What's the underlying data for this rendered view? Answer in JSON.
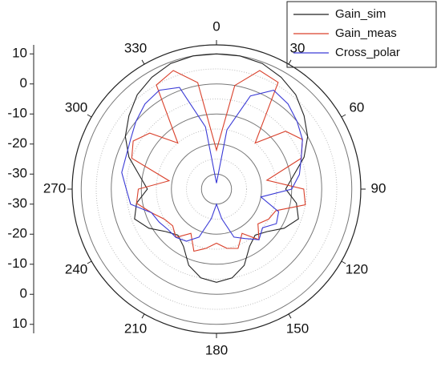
{
  "chart_data": {
    "type": "polar",
    "theta": [
      0,
      10,
      20,
      30,
      40,
      50,
      60,
      70,
      80,
      90,
      100,
      110,
      120,
      130,
      140,
      150,
      160,
      170,
      180,
      190,
      200,
      210,
      220,
      230,
      240,
      250,
      260,
      270,
      280,
      290,
      300,
      310,
      320,
      330,
      340,
      350
    ],
    "series": [
      {
        "name": "Gain_sim",
        "color": "#222222",
        "values": [
          10,
          10,
          9.5,
          8,
          6,
          3,
          0,
          -4,
          -9,
          -12,
          -8,
          -6,
          -9,
          -13,
          -15,
          -13,
          -8,
          -5,
          -4,
          -5,
          -8,
          -13,
          -15,
          -13,
          -9,
          -6,
          -8,
          -12,
          -9,
          -4,
          0,
          3,
          6,
          8,
          9.5,
          10
        ]
      },
      {
        "name": "Gain_meas",
        "color": "#d9402b",
        "values": [
          -22,
          0,
          7,
          6,
          -15,
          -5,
          -2,
          -5,
          -18,
          -6,
          -5,
          -14,
          -15,
          -17,
          -13,
          -18,
          -14,
          -15,
          -17,
          -15,
          -13,
          -18,
          -14,
          -16,
          -15,
          -12,
          -8,
          -9,
          -19,
          -5,
          -3,
          -6,
          -15,
          5,
          7,
          1
        ]
      },
      {
        "name": "Cross_polar",
        "color": "#3a3ad6",
        "values": [
          -33,
          -15,
          -2,
          3,
          2,
          0,
          -2,
          -5,
          -7,
          -10,
          -20,
          -13,
          -12,
          -15,
          -13,
          -16,
          -18,
          -25,
          -30,
          -25,
          -18,
          -15,
          -14,
          -14,
          -13,
          -12,
          -6,
          -5,
          -3,
          -3,
          -2,
          0,
          2,
          3,
          1,
          -14
        ]
      }
    ],
    "rlim": [
      -35,
      13
    ],
    "rticks": [
      -30,
      -20,
      -10,
      0,
      10
    ],
    "thetaticks": [
      0,
      30,
      60,
      90,
      120,
      150,
      180,
      210,
      240,
      270,
      300,
      330
    ]
  }
}
